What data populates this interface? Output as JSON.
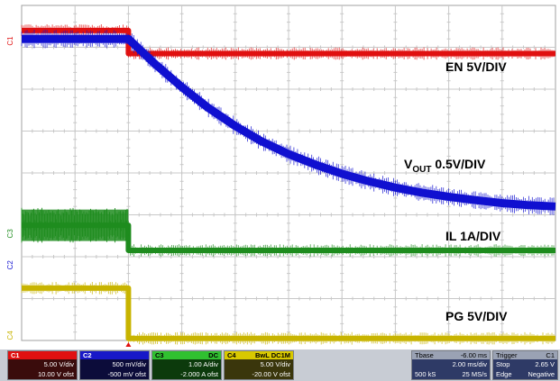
{
  "chart_data": {
    "type": "line",
    "title": "",
    "xlabel": "",
    "ylabel": "",
    "grid": true,
    "divisions": {
      "x": 10,
      "y": 8
    },
    "x_unit": "div",
    "x_range": [
      0,
      10
    ],
    "disable_time_div": 2.0,
    "series": [
      {
        "name": "EN 5V/DIV",
        "color": "#e01010",
        "x": [
          0,
          2.0,
          2.0,
          10
        ],
        "y": [
          7.4,
          7.4,
          6.85,
          6.85
        ]
      },
      {
        "name": "VOUT 0.5V/DIV",
        "color": "#1010d0",
        "x": [
          0,
          2.0,
          2.5,
          3.0,
          3.5,
          4.0,
          4.5,
          5.0,
          5.5,
          6.0,
          6.5,
          7.0,
          7.5,
          8.0,
          8.5,
          9.0,
          9.5,
          10.0
        ],
        "y": [
          7.2,
          7.2,
          6.6,
          6.05,
          5.55,
          5.12,
          4.75,
          4.45,
          4.2,
          3.98,
          3.8,
          3.65,
          3.53,
          3.43,
          3.35,
          3.28,
          3.23,
          3.2
        ]
      },
      {
        "name": "IL 1A/DIV",
        "color": "#1e8c1e",
        "x": [
          0,
          2.0,
          2.0,
          10
        ],
        "y": [
          2.75,
          2.75,
          2.15,
          2.15
        ],
        "noise_before_switch": 0.75
      },
      {
        "name": "PG 5V/DIV",
        "color": "#c8b400",
        "x": [
          0,
          2.0,
          2.0,
          10
        ],
        "y": [
          1.25,
          1.25,
          0.05,
          0.05
        ]
      }
    ],
    "annotations": [
      {
        "text": "EN 5V/DIV"
      },
      {
        "text_main": "V",
        "text_sub": "OUT",
        "text_tail": " 0.5V/DIV"
      },
      {
        "text": "IL 1A/DIV"
      },
      {
        "text": "PG 5V/DIV"
      }
    ],
    "channel_markers": [
      "C1",
      "C2",
      "C3",
      "C4"
    ]
  },
  "status": {
    "ch1": {
      "label": "C1",
      "color": "#e01010",
      "volts_div": "5.00 V/div",
      "offset": "10.00 V ofst"
    },
    "ch2": {
      "label": "C2",
      "color": "#1818c8",
      "volts_div": "500 mV/div",
      "offset": "-500 mV ofst"
    },
    "ch3": {
      "label": "C3",
      "color": "#30c030",
      "volts_div": "1.00 A/div",
      "offset": "-2.000 A ofst",
      "tag": "DC"
    },
    "ch4": {
      "label": "C4",
      "color": "#d8c800",
      "volts_div": "5.00 V/div",
      "offset": "-20.00 V ofst",
      "tag": "BwL DC1M"
    },
    "timebase": {
      "title": "Tbase",
      "delay": "-6.00 ms",
      "time_div": "2.00 ms/div",
      "samples": "500 kS",
      "rate": "25 MS/s"
    },
    "trigger": {
      "title": "Trigger",
      "channel": "C1",
      "mode": "Stop",
      "level": "2.65 V",
      "type": "Edge",
      "slope": "Negative"
    }
  }
}
